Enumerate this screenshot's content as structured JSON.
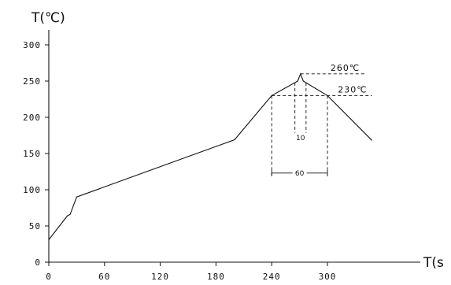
{
  "chart_data": {
    "type": "line",
    "title": "",
    "ylabel": "T(℃)",
    "xlabel": "T(s",
    "xlim": [
      0,
      300
    ],
    "ylim": [
      0,
      300
    ],
    "x_ticks": [
      0,
      60,
      120,
      180,
      240,
      300
    ],
    "x_tick_labels": [
      "0",
      "60",
      "120",
      "180",
      "240",
      "300"
    ],
    "y_ticks": [
      0,
      50,
      100,
      150,
      200,
      250,
      300
    ],
    "y_tick_labels": [
      "0",
      "50",
      "100",
      "150",
      "200",
      "250",
      "300"
    ],
    "grid": false,
    "series": [
      {
        "x": [
          0,
          20,
          23,
          30,
          200,
          240,
          268,
          271,
          274,
          300,
          348
        ],
        "y": [
          31,
          64,
          66,
          90,
          169,
          230,
          250,
          260,
          250,
          230,
          168
        ]
      }
    ],
    "reference_lines": [
      {
        "y": 260,
        "x_from": 271,
        "x_to": 340,
        "label": "260℃"
      },
      {
        "y": 230,
        "x_from": 240,
        "x_to": 348,
        "label": "230℃"
      }
    ],
    "dimensions": [
      {
        "x_from": 265,
        "x_to": 277,
        "y": 172,
        "label": "10"
      },
      {
        "x_from": 240,
        "x_to": 300,
        "y": 123,
        "label": "60"
      }
    ]
  }
}
